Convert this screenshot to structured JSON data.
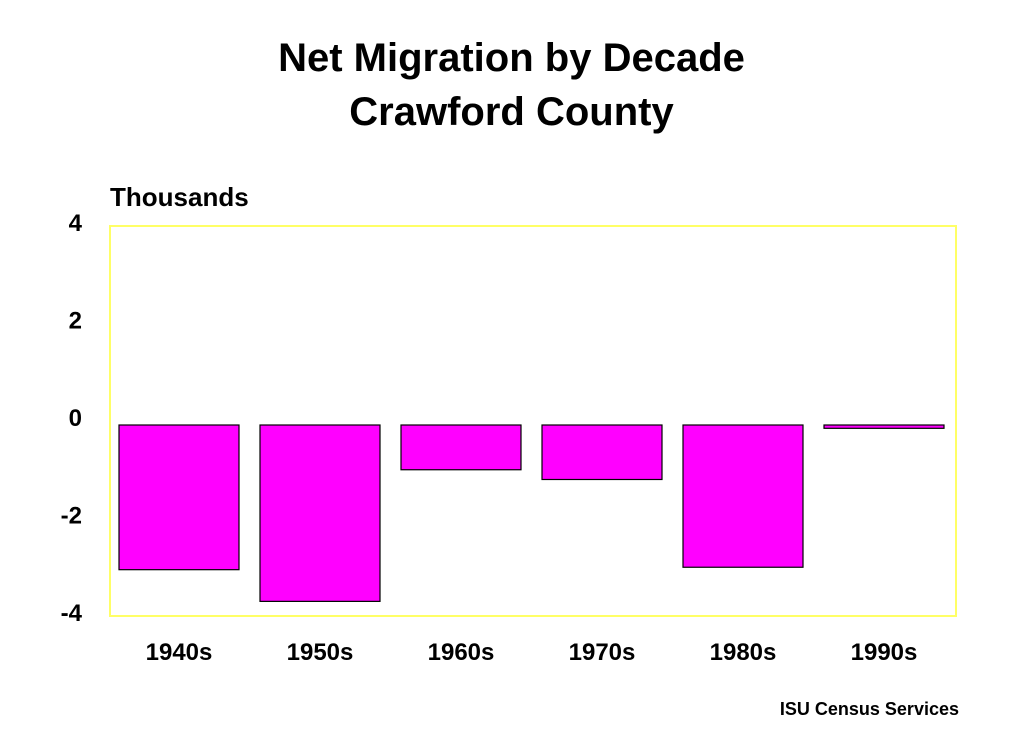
{
  "chart_data": {
    "type": "bar",
    "title": "Net Migration by Decade",
    "subtitle": "Crawford County",
    "ylabel": "Thousands",
    "xlabel": "",
    "categories": [
      "1940s",
      "1950s",
      "1960s",
      "1970s",
      "1980s",
      "1990s"
    ],
    "values": [
      -3.05,
      -3.7,
      -1.0,
      -1.2,
      -3.0,
      -0.15
    ],
    "ylim": [
      -4,
      4
    ],
    "yticks": [
      "4",
      "2",
      "0",
      "-2",
      "-4"
    ],
    "yticks_values": [
      4,
      2,
      0,
      -2,
      -4
    ],
    "bar_color": "#ff00ff",
    "plot_border_color": "#ffff66",
    "grid": false,
    "legend": "none"
  },
  "footer": {
    "credit": "ISU Census Services"
  }
}
